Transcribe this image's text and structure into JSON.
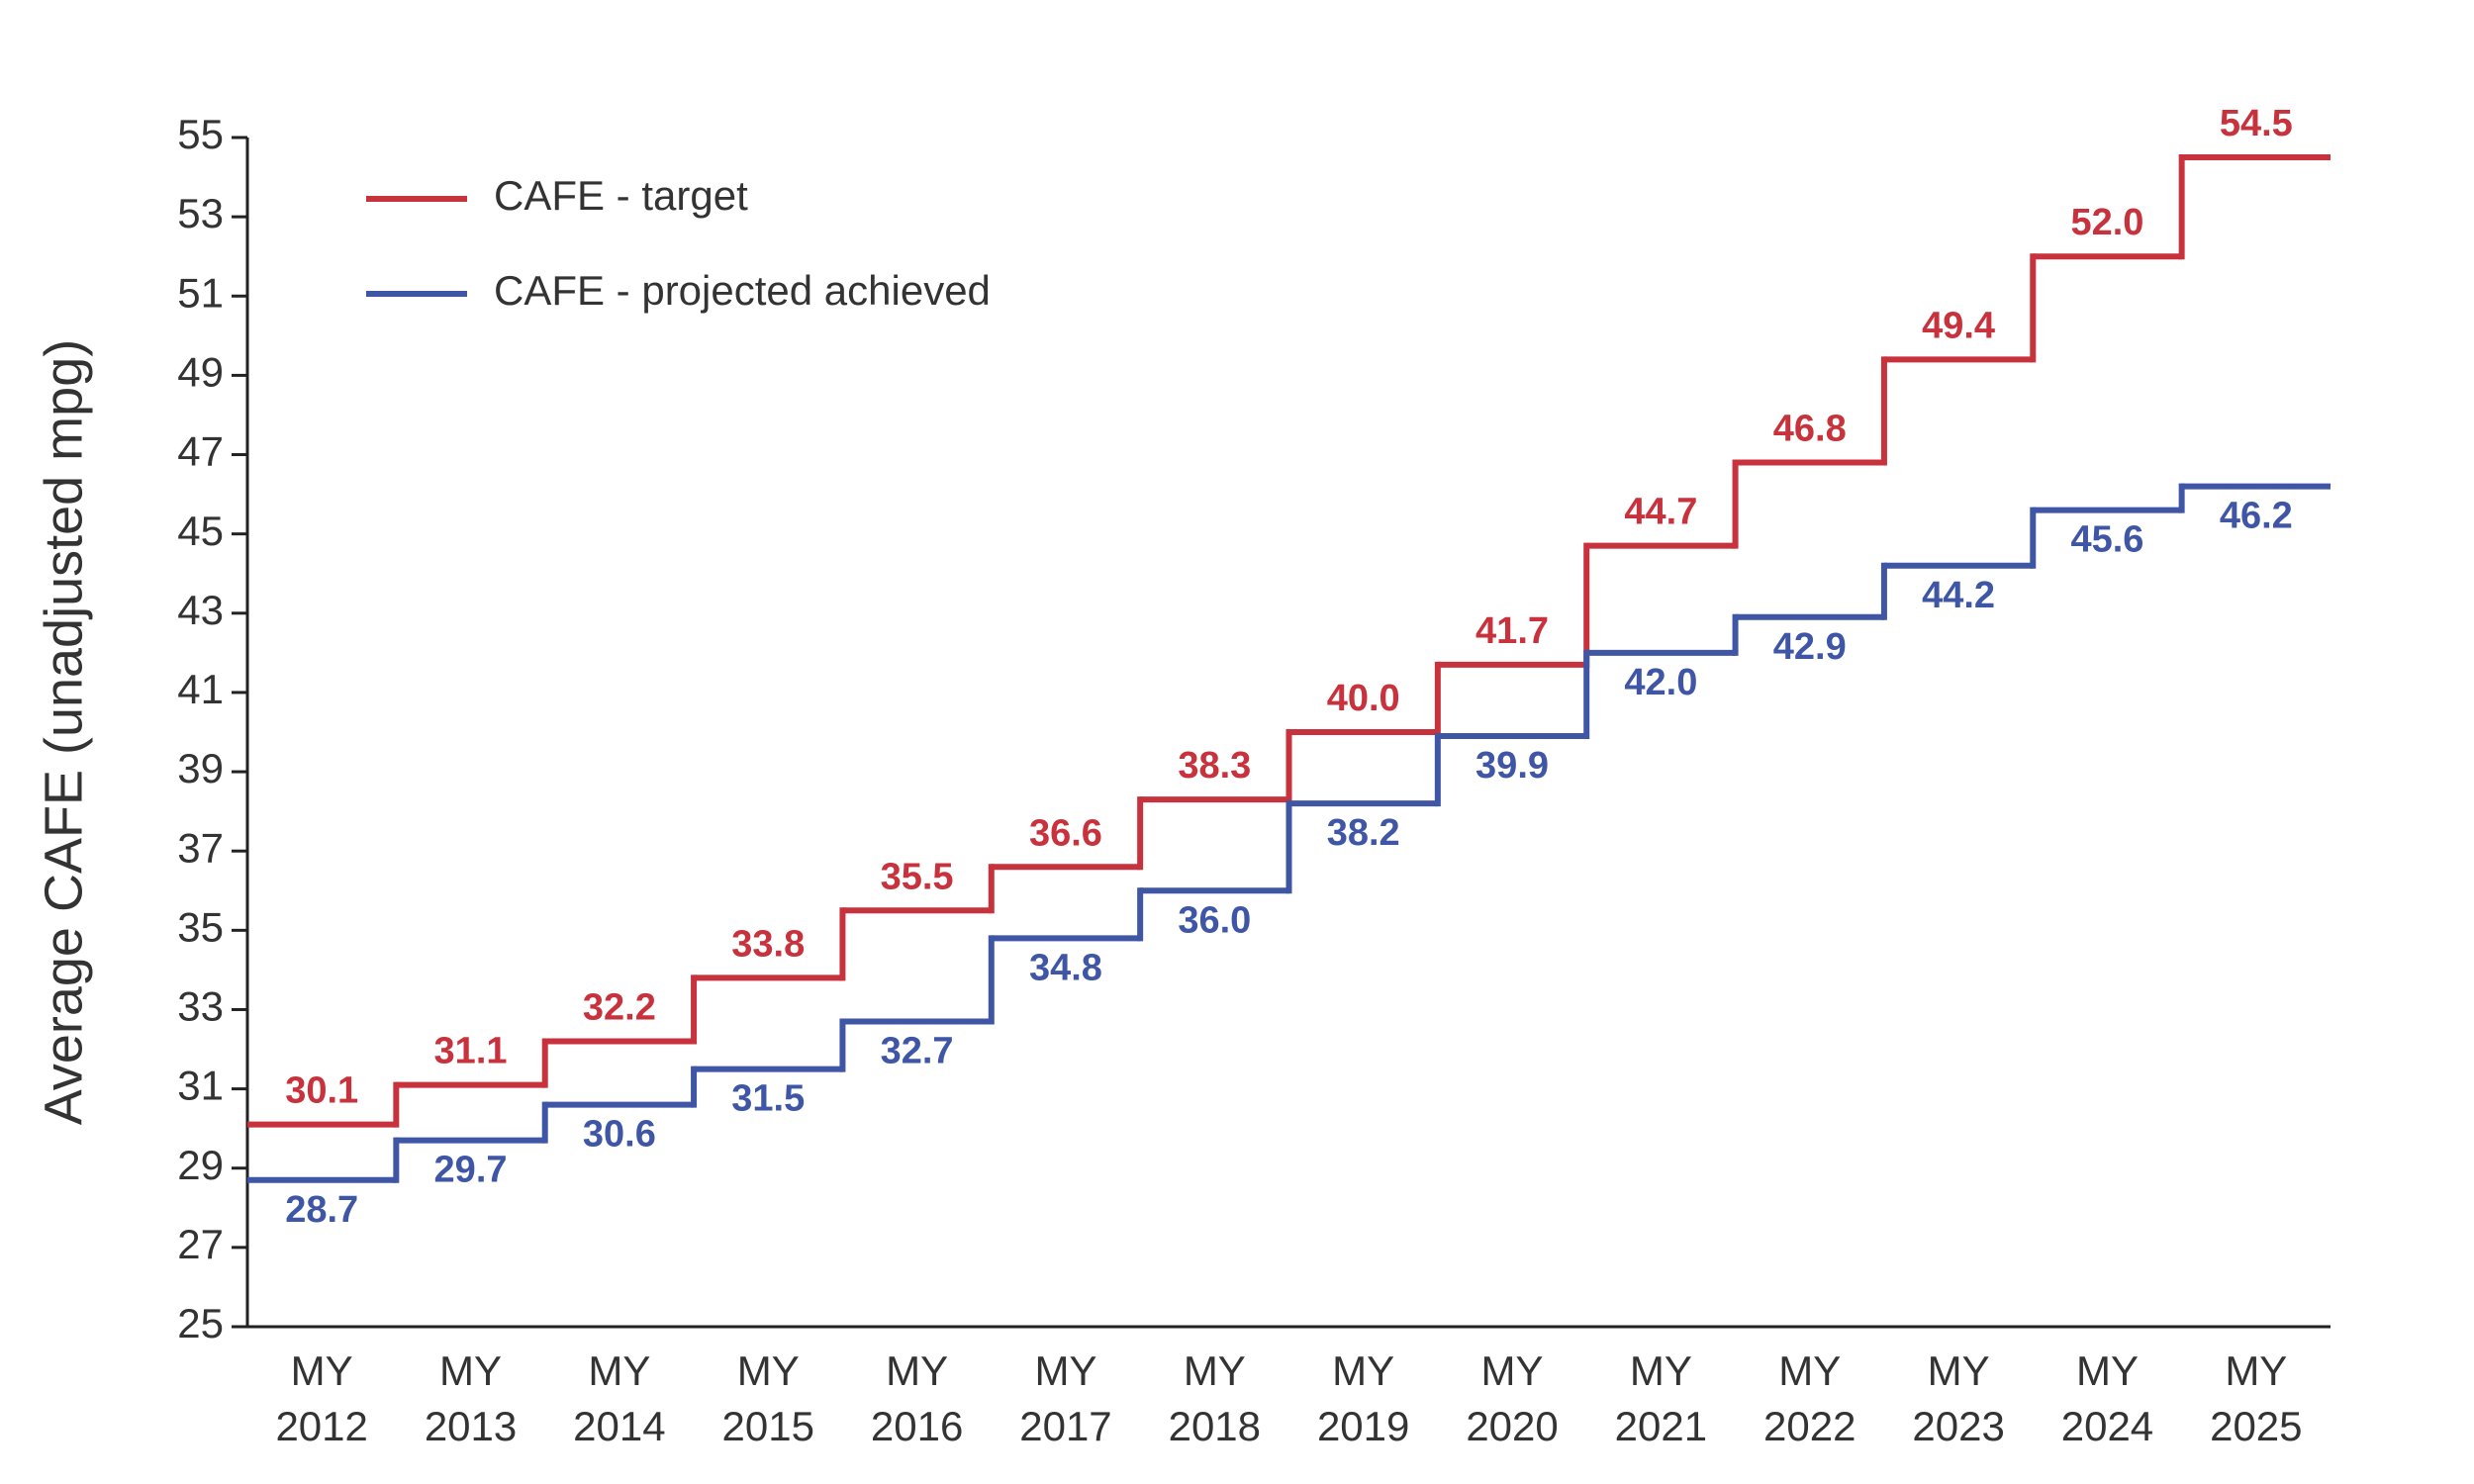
{
  "chart_data": {
    "type": "step",
    "y_label": "Average CAFE (unadjusted mpg)",
    "categories": [
      "MY 2012",
      "MY 2013",
      "MY 2014",
      "MY 2015",
      "MY 2016",
      "MY 2017",
      "MY 2018",
      "MY 2019",
      "MY 2020",
      "MY 2021",
      "MY 2022",
      "MY 2023",
      "MY 2024",
      "MY 2025"
    ],
    "series": [
      {
        "name": "CAFE - target",
        "color": "#c8323c",
        "label_side": "above",
        "values": [
          30.1,
          31.1,
          32.2,
          33.8,
          35.5,
          36.6,
          38.3,
          40.0,
          41.7,
          44.7,
          46.8,
          49.4,
          52.0,
          54.5
        ],
        "value_labels": [
          "30.1",
          "31.1",
          "32.2",
          "33.8",
          "35.5",
          "36.6",
          "38.3",
          "40.0",
          "41.7",
          "44.7",
          "46.8",
          "49.4",
          "52.0",
          "54.5"
        ]
      },
      {
        "name": "CAFE - projected achieved",
        "color": "#3f56a6",
        "label_side": "below",
        "values": [
          28.7,
          29.7,
          30.6,
          31.5,
          32.7,
          34.8,
          36.0,
          38.2,
          39.9,
          42.0,
          42.9,
          44.2,
          45.6,
          46.2
        ],
        "value_labels": [
          "28.7",
          "29.7",
          "30.6",
          "31.5",
          "32.7",
          "34.8",
          "36.0",
          "38.2",
          "39.9",
          "42.0",
          "42.9",
          "44.2",
          "45.6",
          "46.2"
        ]
      }
    ],
    "ylim": [
      25,
      55
    ],
    "yticks": [
      25,
      27,
      29,
      31,
      33,
      35,
      37,
      39,
      41,
      43,
      45,
      47,
      49,
      51,
      53,
      55
    ],
    "legend": "upper-left"
  }
}
